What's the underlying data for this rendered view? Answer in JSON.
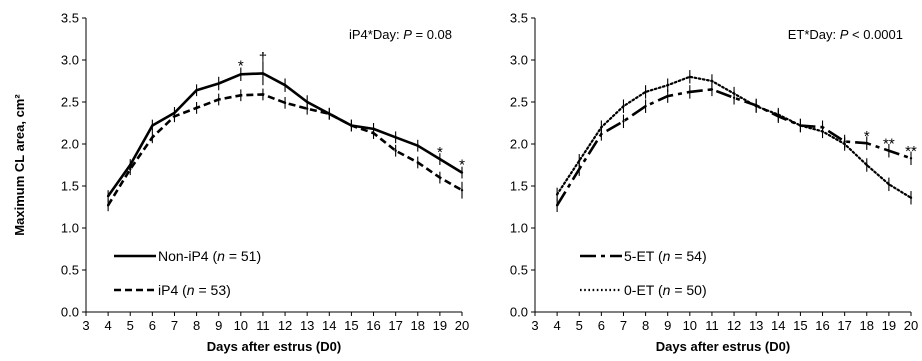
{
  "chart_data": [
    {
      "type": "line",
      "ylabel": "Maximum CL area, cm²",
      "xlabel": "Days after estrus (D0)",
      "xlim": [
        3,
        20
      ],
      "ylim": [
        0,
        3.5
      ],
      "xticks": [
        3,
        4,
        5,
        6,
        7,
        8,
        9,
        10,
        11,
        12,
        13,
        14,
        15,
        16,
        17,
        18,
        19,
        20
      ],
      "yticks": [
        "0.0",
        "0.5",
        "1.0",
        "1.5",
        "2.0",
        "2.5",
        "3.0",
        "3.5"
      ],
      "annotation": {
        "prefix": "iP4*Day: ",
        "p": "P",
        "suffix": " = 0.08"
      },
      "legend_position": "bottom-left",
      "series": [
        {
          "name": "Non-iP4",
          "n_label": "n",
          "n_text": " = 51",
          "style": "solid",
          "x": [
            4,
            5,
            6,
            7,
            8,
            9,
            10,
            11,
            12,
            13,
            14,
            15,
            16,
            17,
            18,
            19,
            20
          ],
          "values": [
            1.38,
            1.75,
            2.22,
            2.37,
            2.64,
            2.72,
            2.83,
            2.84,
            2.7,
            2.5,
            2.36,
            2.22,
            2.18,
            2.08,
            1.98,
            1.82,
            1.66
          ],
          "errors": [
            0.07,
            0.07,
            0.07,
            0.07,
            0.07,
            0.08,
            0.08,
            0.14,
            0.08,
            0.08,
            0.07,
            0.07,
            0.07,
            0.07,
            0.07,
            0.07,
            0.07
          ]
        },
        {
          "name": "iP4",
          "n_label": "n",
          "n_text": " = 53",
          "style": "dashed",
          "x": [
            4,
            5,
            6,
            7,
            8,
            9,
            10,
            11,
            12,
            13,
            14,
            15,
            16,
            17,
            18,
            19,
            20
          ],
          "values": [
            1.27,
            1.7,
            2.08,
            2.33,
            2.43,
            2.53,
            2.58,
            2.59,
            2.49,
            2.42,
            2.36,
            2.22,
            2.13,
            1.92,
            1.78,
            1.6,
            1.45
          ],
          "errors": [
            0.07,
            0.07,
            0.07,
            0.07,
            0.07,
            0.07,
            0.07,
            0.07,
            0.07,
            0.07,
            0.07,
            0.07,
            0.07,
            0.07,
            0.07,
            0.07,
            0.1
          ]
        }
      ],
      "significance": [
        {
          "x": 10,
          "y": 2.97,
          "label": "*"
        },
        {
          "x": 11,
          "y": 3.06,
          "label": "†"
        },
        {
          "x": 19,
          "y": 1.94,
          "label": "*"
        },
        {
          "x": 20,
          "y": 1.79,
          "label": "*"
        }
      ]
    },
    {
      "type": "line",
      "ylabel": "",
      "xlabel": "Days after estrus (D0)",
      "xlim": [
        3,
        20
      ],
      "ylim": [
        0,
        3.5
      ],
      "xticks": [
        3,
        4,
        5,
        6,
        7,
        8,
        9,
        10,
        11,
        12,
        13,
        14,
        15,
        16,
        17,
        18,
        19,
        20
      ],
      "yticks": [
        "0.0",
        "0.5",
        "1.0",
        "1.5",
        "2.0",
        "2.5",
        "3.0",
        "3.5"
      ],
      "annotation": {
        "prefix": "ET*Day: ",
        "p": "P",
        "suffix": " < 0.0001"
      },
      "legend_position": "bottom-left",
      "series": [
        {
          "name": "5-ET",
          "n_label": "n",
          "n_text": " = 54",
          "style": "dashdot",
          "x": [
            4,
            5,
            6,
            7,
            8,
            9,
            10,
            11,
            12,
            13,
            14,
            15,
            16,
            17,
            18,
            19,
            20
          ],
          "values": [
            1.27,
            1.7,
            2.12,
            2.27,
            2.45,
            2.57,
            2.62,
            2.65,
            2.55,
            2.46,
            2.33,
            2.22,
            2.2,
            2.03,
            2.01,
            1.92,
            1.83
          ],
          "errors": [
            0.08,
            0.08,
            0.08,
            0.08,
            0.08,
            0.08,
            0.08,
            0.08,
            0.08,
            0.08,
            0.08,
            0.08,
            0.08,
            0.08,
            0.08,
            0.08,
            0.08
          ]
        },
        {
          "name": "0-ET",
          "n_label": "n",
          "n_text": " = 50",
          "style": "dotted",
          "x": [
            4,
            5,
            6,
            7,
            8,
            9,
            10,
            11,
            12,
            13,
            14,
            15,
            16,
            17,
            18,
            19,
            20
          ],
          "values": [
            1.4,
            1.8,
            2.2,
            2.45,
            2.62,
            2.7,
            2.8,
            2.75,
            2.6,
            2.45,
            2.35,
            2.22,
            2.15,
            2.0,
            1.75,
            1.52,
            1.36
          ],
          "errors": [
            0.08,
            0.08,
            0.08,
            0.08,
            0.08,
            0.08,
            0.08,
            0.08,
            0.08,
            0.08,
            0.08,
            0.08,
            0.08,
            0.08,
            0.08,
            0.08,
            0.08
          ]
        }
      ],
      "significance": [
        {
          "x": 18,
          "y": 2.13,
          "label": "*"
        },
        {
          "x": 19,
          "y": 2.04,
          "label": "**"
        },
        {
          "x": 20,
          "y": 1.95,
          "label": "**"
        }
      ]
    }
  ]
}
